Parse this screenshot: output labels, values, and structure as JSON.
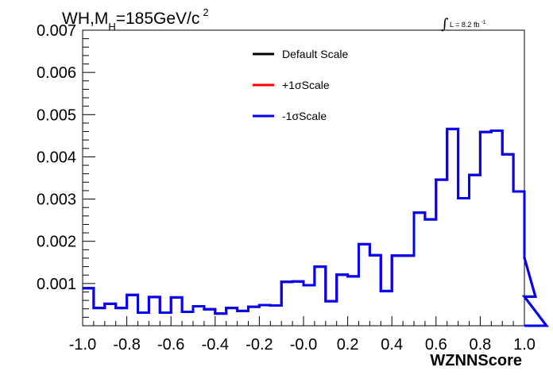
{
  "chart_data": {
    "type": "line",
    "title": {
      "part1": "WH,M",
      "subscript": "H",
      "part2": "=185GeV/c",
      "superscript": "2"
    },
    "luminosity": {
      "integral": "∫",
      "text": "L = 8.2 fb",
      "superscript": "-1"
    },
    "xlabel": "WZNNScore",
    "ylabel": "",
    "xlim": [
      -1.0,
      1.0
    ],
    "ylim": [
      0.0,
      0.007
    ],
    "x_tick_labels": [
      "-1.0",
      "-0.8",
      "-0.6",
      "-0.4",
      "-0.2",
      "-0.0",
      "0.2",
      "0.4",
      "0.6",
      "0.8",
      "1.0"
    ],
    "y_tick_labels": [
      "0.001",
      "0.002",
      "0.003",
      "0.004",
      "0.005",
      "0.006",
      "0.007"
    ],
    "bin_edges_start": -1.0,
    "bin_width": 0.05,
    "series": [
      {
        "name": "Default Scale",
        "color": "#000000",
        "values": [
          0.00089,
          0.00042,
          0.00052,
          0.00042,
          0.00073,
          0.00031,
          0.00068,
          0.00031,
          0.00067,
          0.00033,
          0.00046,
          0.00039,
          0.00029,
          0.00042,
          0.00035,
          0.00045,
          0.00049,
          0.00048,
          0.00104,
          0.00105,
          0.00096,
          0.0014,
          0.00058,
          0.00121,
          0.00117,
          0.00193,
          0.00167,
          0.00082,
          0.00166,
          0.00166,
          0.00268,
          0.00252,
          0.00346,
          0.00466,
          0.00302,
          0.00357,
          0.00459,
          0.00462,
          0.00406,
          0.00318,
          0.00161,
          0.00069,
          0.0
        ]
      },
      {
        "name": "+1σScale",
        "color": "#ff0000",
        "values": [
          0.00089,
          0.00042,
          0.00052,
          0.00042,
          0.00073,
          0.00031,
          0.00068,
          0.00031,
          0.00067,
          0.00033,
          0.00046,
          0.00039,
          0.00029,
          0.00042,
          0.00035,
          0.00045,
          0.00049,
          0.00048,
          0.00104,
          0.00105,
          0.00096,
          0.0014,
          0.00058,
          0.00121,
          0.00117,
          0.00193,
          0.00167,
          0.00082,
          0.00166,
          0.00166,
          0.00268,
          0.00252,
          0.00346,
          0.00466,
          0.00302,
          0.00357,
          0.00459,
          0.00462,
          0.00406,
          0.00318,
          0.00161,
          0.00069,
          0.0
        ]
      },
      {
        "name": "-1σScale",
        "color": "#0000ff",
        "values": [
          0.00089,
          0.00042,
          0.00052,
          0.00042,
          0.00073,
          0.00031,
          0.00068,
          0.00031,
          0.00067,
          0.00033,
          0.00046,
          0.00039,
          0.00029,
          0.00042,
          0.00035,
          0.00045,
          0.00049,
          0.00048,
          0.00104,
          0.00105,
          0.00096,
          0.0014,
          0.00058,
          0.00121,
          0.00117,
          0.00193,
          0.00167,
          0.00082,
          0.00166,
          0.00166,
          0.00268,
          0.00252,
          0.00346,
          0.00466,
          0.00302,
          0.00357,
          0.00459,
          0.00462,
          0.00406,
          0.00318,
          0.00161,
          0.00069,
          0.0
        ]
      }
    ],
    "grid": false,
    "legend_position": "top-center"
  }
}
